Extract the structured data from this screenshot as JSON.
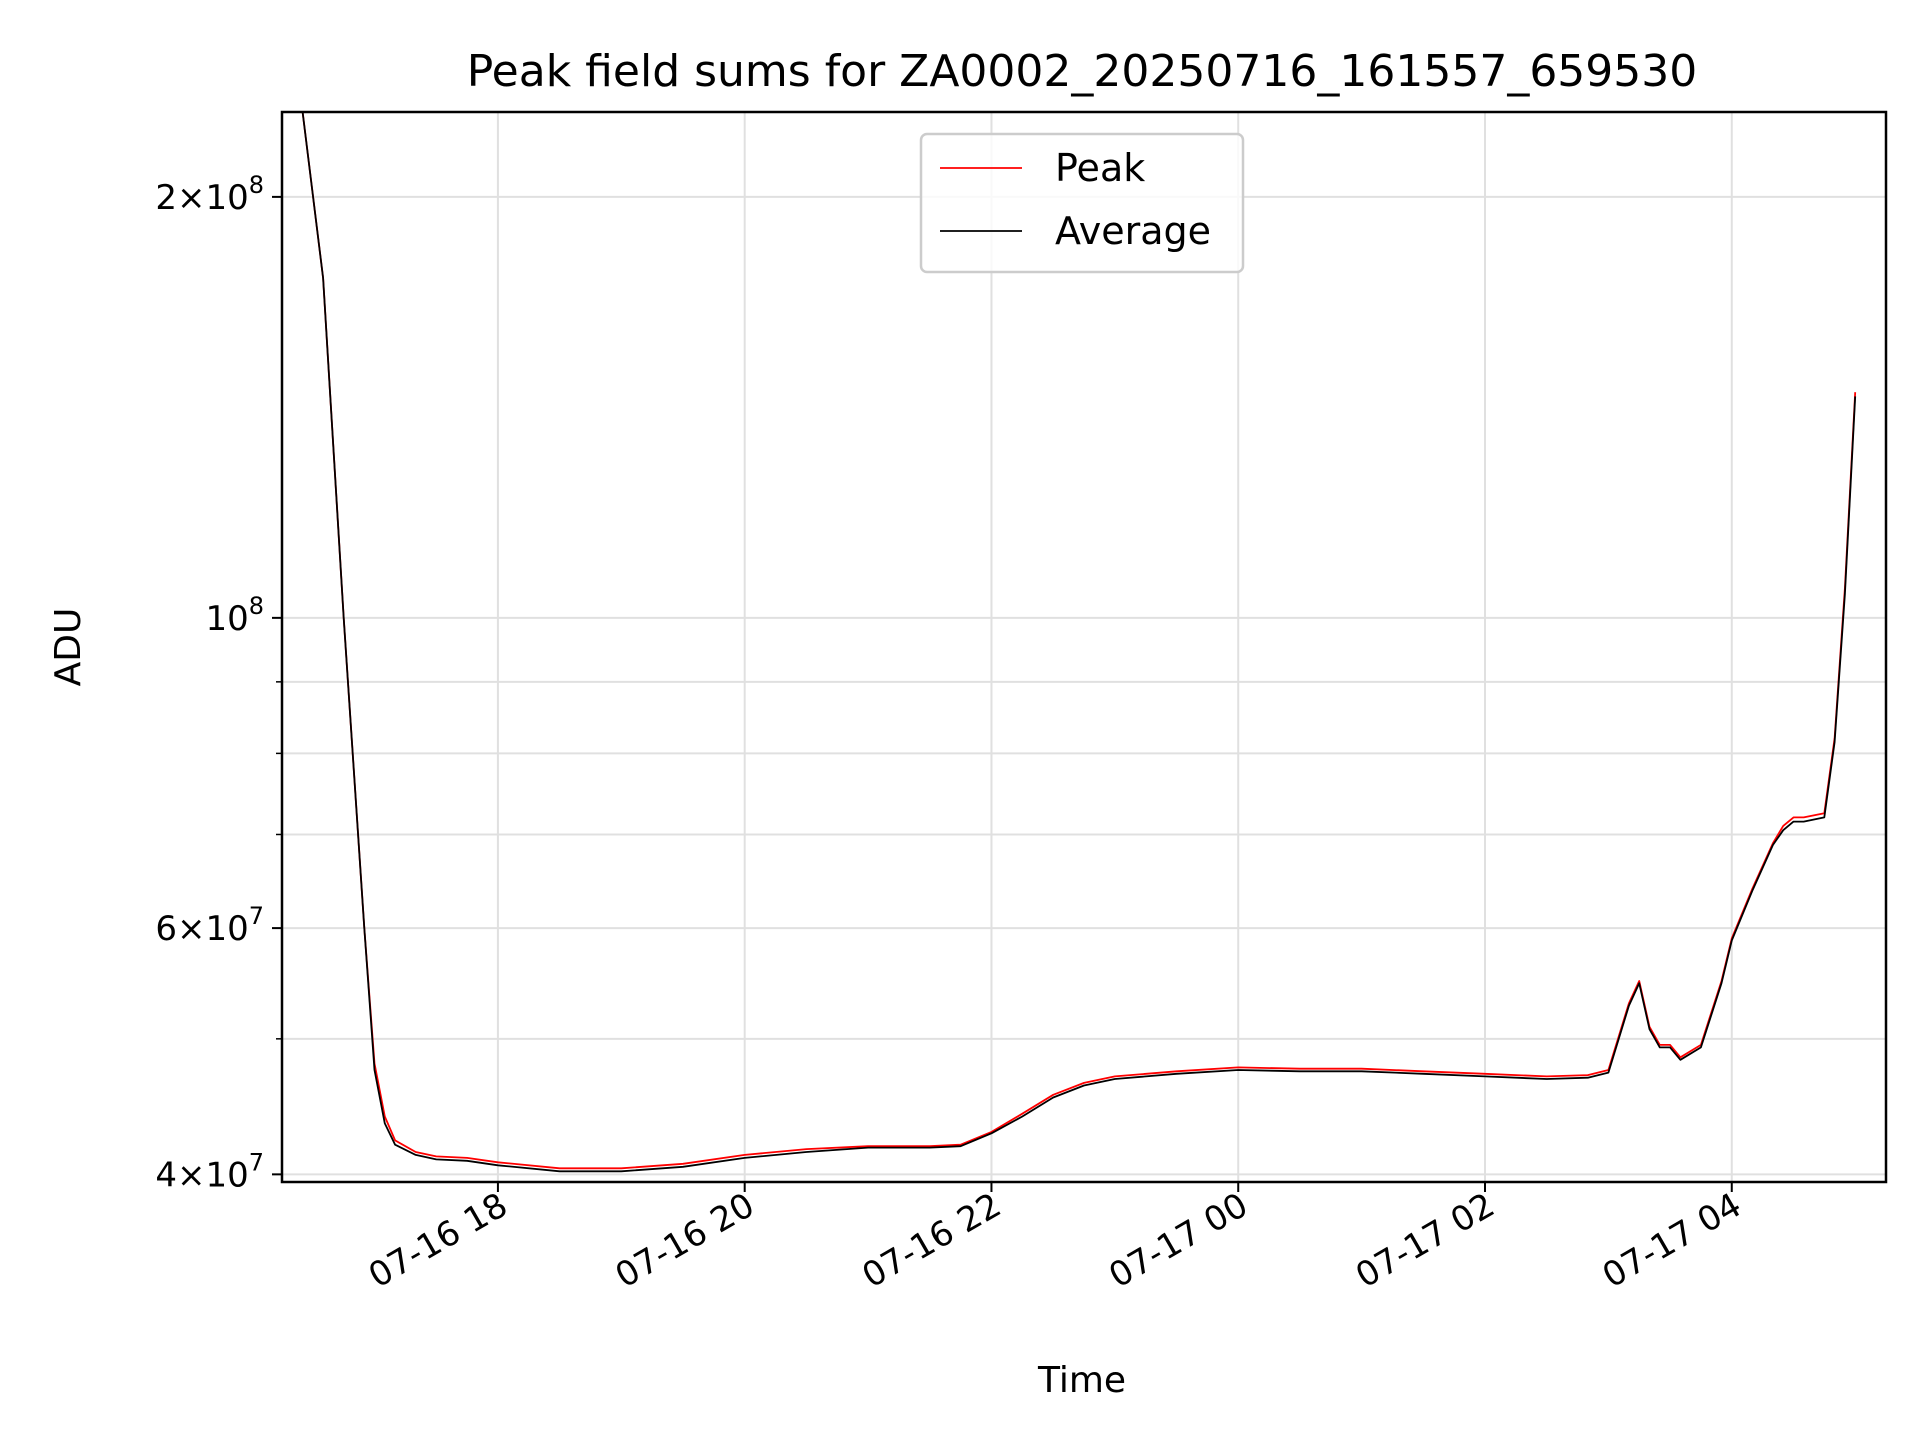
{
  "chart_data": {
    "type": "line",
    "title": "Peak field sums for ZA0002_20250716_161557_659530",
    "xlabel": "Time",
    "ylabel": "ADU",
    "yscale": "log",
    "ylim": [
      39500000,
      230000000
    ],
    "xlim": [
      "2025-07-16 16:15",
      "2025-07-17 05:15"
    ],
    "grid": true,
    "legend_position": "top-center",
    "x_ticks": [
      {
        "value": "2025-07-16 18:00",
        "label": "07-16 18"
      },
      {
        "value": "2025-07-16 20:00",
        "label": "07-16 20"
      },
      {
        "value": "2025-07-16 22:00",
        "label": "07-16 22"
      },
      {
        "value": "2025-07-17 00:00",
        "label": "07-17 00"
      },
      {
        "value": "2025-07-17 02:00",
        "label": "07-17 02"
      },
      {
        "value": "2025-07-17 04:00",
        "label": "07-17 04"
      }
    ],
    "y_ticks": [
      {
        "value": 40000000,
        "base": "4",
        "exp": "7"
      },
      {
        "value": 60000000,
        "base": "6",
        "exp": "7"
      },
      {
        "value": 100000000,
        "base": "",
        "exp": "8"
      },
      {
        "value": 200000000,
        "base": "2",
        "exp": "8"
      }
    ],
    "y_minor_ticks": [
      50000000,
      70000000,
      80000000,
      90000000
    ],
    "series": [
      {
        "name": "Peak",
        "color": "#ff0000",
        "x": [
          "2025-07-16 16:25",
          "2025-07-16 16:35",
          "2025-07-16 16:45",
          "2025-07-16 16:55",
          "2025-07-16 17:00",
          "2025-07-16 17:05",
          "2025-07-16 17:10",
          "2025-07-16 17:20",
          "2025-07-16 17:30",
          "2025-07-16 17:45",
          "2025-07-16 18:00",
          "2025-07-16 18:30",
          "2025-07-16 19:00",
          "2025-07-16 19:30",
          "2025-07-16 20:00",
          "2025-07-16 20:30",
          "2025-07-16 21:00",
          "2025-07-16 21:30",
          "2025-07-16 21:45",
          "2025-07-16 22:00",
          "2025-07-16 22:15",
          "2025-07-16 22:30",
          "2025-07-16 22:45",
          "2025-07-16 23:00",
          "2025-07-16 23:30",
          "2025-07-17 00:00",
          "2025-07-17 00:30",
          "2025-07-17 01:00",
          "2025-07-17 01:30",
          "2025-07-17 02:00",
          "2025-07-17 02:30",
          "2025-07-17 02:50",
          "2025-07-17 03:00",
          "2025-07-17 03:10",
          "2025-07-17 03:15",
          "2025-07-17 03:20",
          "2025-07-17 03:25",
          "2025-07-17 03:30",
          "2025-07-17 03:35",
          "2025-07-17 03:45",
          "2025-07-17 03:55",
          "2025-07-17 04:00",
          "2025-07-17 04:10",
          "2025-07-17 04:20",
          "2025-07-17 04:25",
          "2025-07-17 04:30",
          "2025-07-17 04:35",
          "2025-07-17 04:45",
          "2025-07-17 04:50",
          "2025-07-17 04:55",
          "2025-07-17 05:00"
        ],
        "y": [
          230000000,
          175000000,
          100000000,
          60000000,
          48000000,
          44000000,
          42300000,
          41500000,
          41200000,
          41100000,
          40800000,
          40400000,
          40400000,
          40700000,
          41300000,
          41700000,
          41900000,
          41900000,
          42000000,
          42900000,
          44200000,
          45600000,
          46500000,
          47000000,
          47400000,
          47700000,
          47600000,
          47600000,
          47400000,
          47200000,
          47000000,
          47100000,
          47500000,
          53000000,
          55000000,
          51000000,
          49500000,
          49500000,
          48500000,
          49500000,
          55000000,
          59000000,
          64000000,
          69000000,
          71000000,
          72000000,
          72000000,
          72500000,
          82000000,
          105000000,
          145000000
        ]
      },
      {
        "name": "Average",
        "color": "#000000",
        "x": [
          "2025-07-16 16:25",
          "2025-07-16 16:35",
          "2025-07-16 16:45",
          "2025-07-16 16:55",
          "2025-07-16 17:00",
          "2025-07-16 17:05",
          "2025-07-16 17:10",
          "2025-07-16 17:20",
          "2025-07-16 17:30",
          "2025-07-16 17:45",
          "2025-07-16 18:00",
          "2025-07-16 18:30",
          "2025-07-16 19:00",
          "2025-07-16 19:30",
          "2025-07-16 20:00",
          "2025-07-16 20:30",
          "2025-07-16 21:00",
          "2025-07-16 21:30",
          "2025-07-16 21:45",
          "2025-07-16 22:00",
          "2025-07-16 22:15",
          "2025-07-16 22:30",
          "2025-07-16 22:45",
          "2025-07-16 23:00",
          "2025-07-16 23:30",
          "2025-07-17 00:00",
          "2025-07-17 00:30",
          "2025-07-17 01:00",
          "2025-07-17 01:30",
          "2025-07-17 02:00",
          "2025-07-17 02:30",
          "2025-07-17 02:50",
          "2025-07-17 03:00",
          "2025-07-17 03:10",
          "2025-07-17 03:15",
          "2025-07-17 03:20",
          "2025-07-17 03:25",
          "2025-07-17 03:30",
          "2025-07-17 03:35",
          "2025-07-17 03:45",
          "2025-07-17 03:55",
          "2025-07-17 04:00",
          "2025-07-17 04:10",
          "2025-07-17 04:20",
          "2025-07-17 04:25",
          "2025-07-17 04:30",
          "2025-07-17 04:35",
          "2025-07-17 04:45",
          "2025-07-17 04:50",
          "2025-07-17 04:55",
          "2025-07-17 05:00"
        ],
        "y": [
          230000000,
          175000000,
          100000000,
          60000000,
          47500000,
          43500000,
          42000000,
          41300000,
          41000000,
          40900000,
          40600000,
          40200000,
          40200000,
          40500000,
          41100000,
          41500000,
          41800000,
          41800000,
          41900000,
          42800000,
          44000000,
          45400000,
          46300000,
          46800000,
          47200000,
          47500000,
          47400000,
          47400000,
          47200000,
          47000000,
          46800000,
          46900000,
          47300000,
          52800000,
          54800000,
          50800000,
          49300000,
          49300000,
          48300000,
          49300000,
          54800000,
          58800000,
          63800000,
          68800000,
          70500000,
          71500000,
          71500000,
          72000000,
          81500000,
          104000000,
          144000000
        ]
      }
    ]
  }
}
